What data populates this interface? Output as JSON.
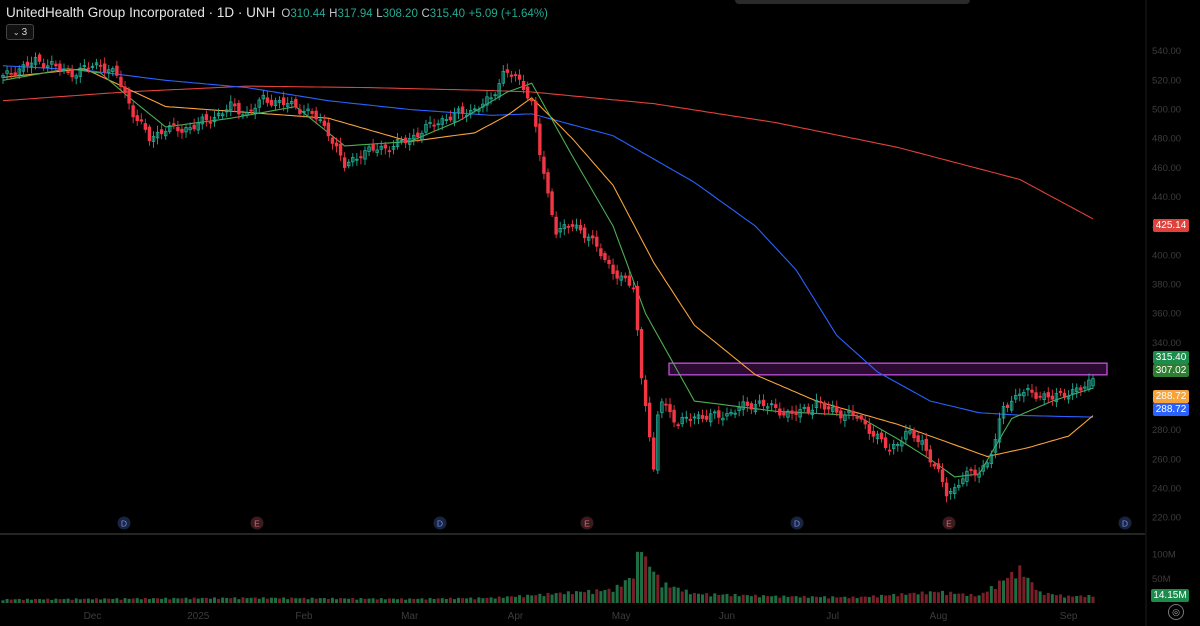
{
  "header": {
    "symbol_line": "UnitedHealth Group Incorporated · 1D · UNH",
    "open_label": "O",
    "open": "310.44",
    "high_label": "H",
    "high": "317.94",
    "low_label": "L",
    "low": "308.20",
    "close_label": "C",
    "close": "315.40",
    "change": "+5.09 (+1.64%)"
  },
  "indicator_toggle": {
    "count": "3"
  },
  "colors": {
    "up": "#22ab94",
    "down": "#f23645",
    "ma_fast": "#4caf50",
    "ma_mid": "#f7a33c",
    "ma_slow": "#2962ff",
    "ma_200": "#e0413a",
    "zone": "#9c27b0",
    "background": "#000000"
  },
  "chart_data": {
    "type": "candlestick",
    "y_axis_labels": [
      "540.00",
      "520.00",
      "500.00",
      "480.00",
      "460.00",
      "440.00",
      "420.00",
      "400.00",
      "380.00",
      "360.00",
      "340.00",
      "320.00",
      "300.00",
      "280.00",
      "260.00",
      "240.00",
      "220.00"
    ],
    "ylim": [
      215,
      560
    ],
    "x_axis_labels": [
      "Dec",
      "2025",
      "Feb",
      "Mar",
      "Apr",
      "May",
      "Jun",
      "Jul",
      "Aug",
      "Sep"
    ],
    "event_markers": [
      "D",
      "E",
      "D",
      "E",
      "D",
      "E",
      "D"
    ],
    "price_labels": {
      "ma_200": "425.14",
      "last_price": "315.40",
      "ma_fast": "307.02",
      "ma_mid": "288.72",
      "ma_slow": "288.72"
    },
    "volume_axis_labels": [
      "100M",
      "50M"
    ],
    "volume_last": "14.15M",
    "resistance_zone": {
      "low": 318,
      "high": 326
    },
    "close_anchors": [
      [
        0,
        522
      ],
      [
        4,
        528
      ],
      [
        8,
        533
      ],
      [
        12,
        531
      ],
      [
        16,
        524
      ],
      [
        20,
        528
      ],
      [
        24,
        531
      ],
      [
        28,
        523
      ],
      [
        32,
        498
      ],
      [
        36,
        480
      ],
      [
        40,
        487
      ],
      [
        44,
        486
      ],
      [
        48,
        490
      ],
      [
        52,
        495
      ],
      [
        56,
        502
      ],
      [
        60,
        497
      ],
      [
        64,
        507
      ],
      [
        68,
        505
      ],
      [
        72,
        502
      ],
      [
        76,
        497
      ],
      [
        80,
        485
      ],
      [
        84,
        461
      ],
      [
        88,
        470
      ],
      [
        92,
        473
      ],
      [
        96,
        475
      ],
      [
        100,
        480
      ],
      [
        104,
        487
      ],
      [
        108,
        493
      ],
      [
        112,
        497
      ],
      [
        116,
        500
      ],
      [
        120,
        507
      ],
      [
        123,
        525
      ],
      [
        124,
        526
      ],
      [
        126,
        521
      ],
      [
        128,
        516
      ],
      [
        130,
        505
      ],
      [
        132,
        470
      ],
      [
        134,
        440
      ],
      [
        136,
        418
      ],
      [
        140,
        420
      ],
      [
        144,
        414
      ],
      [
        148,
        396
      ],
      [
        152,
        384
      ],
      [
        155,
        378
      ],
      [
        157,
        317
      ],
      [
        158,
        300
      ],
      [
        160,
        250
      ],
      [
        161,
        290
      ],
      [
        162,
        301
      ],
      [
        166,
        284
      ],
      [
        170,
        290
      ],
      [
        174,
        289
      ],
      [
        178,
        291
      ],
      [
        182,
        296
      ],
      [
        186,
        299
      ],
      [
        190,
        294
      ],
      [
        194,
        291
      ],
      [
        198,
        294
      ],
      [
        200,
        300
      ],
      [
        202,
        295
      ],
      [
        206,
        292
      ],
      [
        210,
        289
      ],
      [
        214,
        278
      ],
      [
        218,
        266
      ],
      [
        222,
        278
      ],
      [
        226,
        272
      ],
      [
        230,
        250
      ],
      [
        232,
        237
      ],
      [
        234,
        240
      ],
      [
        236,
        248
      ],
      [
        238,
        250
      ],
      [
        240,
        252
      ],
      [
        242,
        258
      ],
      [
        244,
        272
      ],
      [
        246,
        297
      ],
      [
        248,
        300
      ],
      [
        250,
        306
      ],
      [
        254,
        305
      ],
      [
        258,
        302
      ],
      [
        262,
        306
      ],
      [
        266,
        309
      ],
      [
        268,
        315.4
      ]
    ],
    "volume_anchors": [
      [
        0,
        7
      ],
      [
        20,
        8
      ],
      [
        40,
        9
      ],
      [
        60,
        10
      ],
      [
        80,
        9
      ],
      [
        100,
        8
      ],
      [
        120,
        10
      ],
      [
        130,
        15
      ],
      [
        135,
        18
      ],
      [
        150,
        26
      ],
      [
        155,
        52
      ],
      [
        157,
        125
      ],
      [
        158,
        82
      ],
      [
        160,
        62
      ],
      [
        162,
        38
      ],
      [
        170,
        18
      ],
      [
        190,
        13
      ],
      [
        210,
        11
      ],
      [
        230,
        22
      ],
      [
        240,
        14
      ],
      [
        250,
        65
      ],
      [
        255,
        20
      ],
      [
        262,
        13
      ],
      [
        268,
        14
      ]
    ],
    "ma_fast_anchors": [
      [
        0,
        520
      ],
      [
        16,
        528
      ],
      [
        24,
        525
      ],
      [
        32,
        506
      ],
      [
        40,
        488
      ],
      [
        56,
        494
      ],
      [
        72,
        502
      ],
      [
        84,
        475
      ],
      [
        100,
        478
      ],
      [
        112,
        492
      ],
      [
        124,
        512
      ],
      [
        130,
        518
      ],
      [
        140,
        468
      ],
      [
        150,
        420
      ],
      [
        158,
        360
      ],
      [
        170,
        300
      ],
      [
        190,
        293
      ],
      [
        210,
        290
      ],
      [
        220,
        274
      ],
      [
        228,
        260
      ],
      [
        234,
        248
      ],
      [
        240,
        250
      ],
      [
        248,
        288
      ],
      [
        258,
        300
      ],
      [
        268,
        309
      ]
    ],
    "ma_mid_anchors": [
      [
        0,
        522
      ],
      [
        20,
        528
      ],
      [
        40,
        502
      ],
      [
        60,
        498
      ],
      [
        80,
        494
      ],
      [
        100,
        478
      ],
      [
        116,
        484
      ],
      [
        124,
        496
      ],
      [
        130,
        508
      ],
      [
        140,
        480
      ],
      [
        150,
        448
      ],
      [
        160,
        395
      ],
      [
        170,
        352
      ],
      [
        185,
        318
      ],
      [
        200,
        300
      ],
      [
        210,
        292
      ],
      [
        220,
        284
      ],
      [
        232,
        272
      ],
      [
        242,
        262
      ],
      [
        252,
        268
      ],
      [
        262,
        276
      ],
      [
        268,
        290
      ]
    ],
    "ma_slow_anchors": [
      [
        0,
        530
      ],
      [
        20,
        527
      ],
      [
        40,
        520
      ],
      [
        60,
        515
      ],
      [
        80,
        506
      ],
      [
        100,
        500
      ],
      [
        120,
        496
      ],
      [
        130,
        497
      ],
      [
        150,
        482
      ],
      [
        170,
        450
      ],
      [
        185,
        420
      ],
      [
        195,
        390
      ],
      [
        205,
        345
      ],
      [
        215,
        320
      ],
      [
        228,
        300
      ],
      [
        240,
        292
      ],
      [
        252,
        290
      ],
      [
        268,
        289
      ]
    ],
    "ma_200_anchors": [
      [
        0,
        506
      ],
      [
        30,
        512
      ],
      [
        60,
        516
      ],
      [
        90,
        515
      ],
      [
        120,
        513
      ],
      [
        130,
        512
      ],
      [
        160,
        504
      ],
      [
        190,
        491
      ],
      [
        220,
        474
      ],
      [
        250,
        452
      ],
      [
        268,
        425
      ]
    ]
  }
}
